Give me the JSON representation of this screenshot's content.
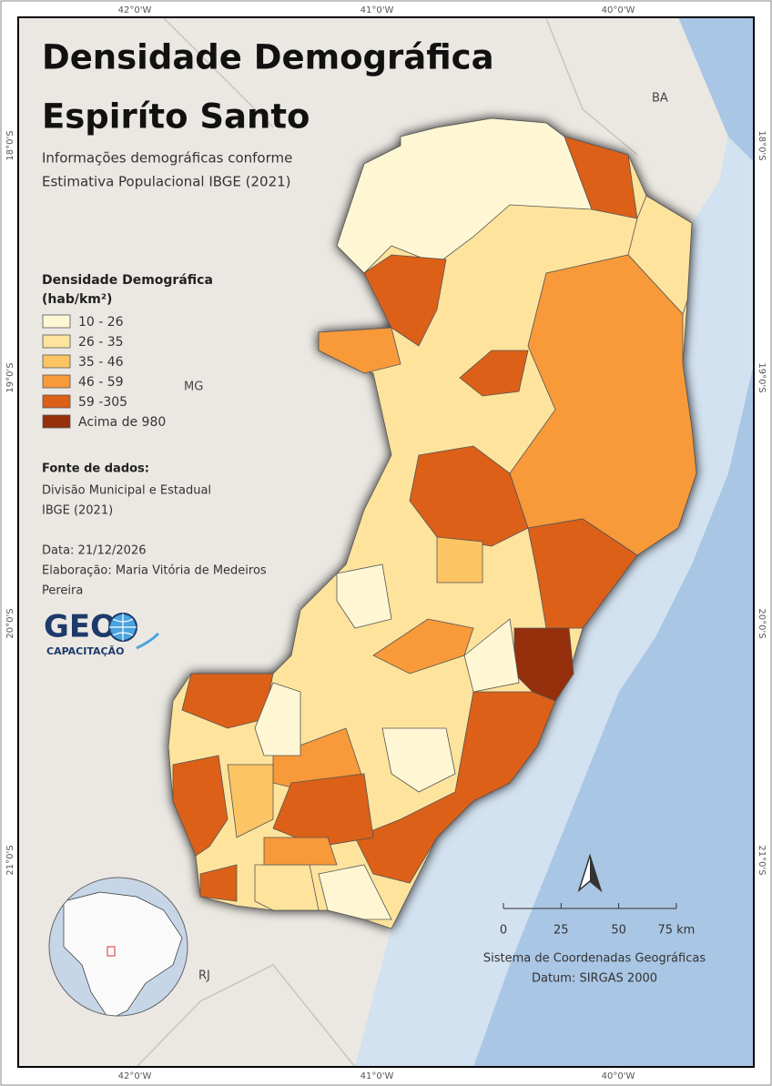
{
  "grid_labels": {
    "top": [
      "42°0'W",
      "41°0'W",
      "40°0'W"
    ],
    "bottom": [
      "42°0'W",
      "41°0'W",
      "40°0'W"
    ],
    "left": [
      "18°0'S",
      "19°0'S",
      "20°0'S",
      "21°0'S"
    ],
    "right": [
      "18°0'S",
      "19°0'S",
      "20°0'S",
      "21°0'S"
    ]
  },
  "header": {
    "title": "Densidade Demográfica",
    "title2": "Espiríto Santo",
    "subtitle": [
      "Informações demográficas conforme",
      "Estimativa Populacional IBGE (2021)"
    ]
  },
  "places": [
    "BA",
    "MG",
    "RJ"
  ],
  "legend": {
    "title": [
      "Densidade Demográfica",
      "(hab/km²)"
    ],
    "items": [
      {
        "label": "10 - 26",
        "color": "#fff7d4"
      },
      {
        "label": "26 - 35",
        "color": "#fde39c"
      },
      {
        "label": "35 - 46",
        "color": "#fcc463"
      },
      {
        "label": "46 - 59",
        "color": "#f8993a"
      },
      {
        "label": "59 -305",
        "color": "#dc6018"
      },
      {
        "label": "Acima de 980",
        "color": "#952f0b"
      }
    ]
  },
  "sources": {
    "heading": "Fonte de dados:",
    "lines": [
      "Divisão Municipal e Estadual",
      "IBGE (2021)"
    ],
    "date": "Data: 21/12/2026",
    "author": [
      "Elaboração: Maria Vitória de Medeiros",
      "Pereira"
    ]
  },
  "logo": {
    "main": "GEO",
    "sub": "CAPACITAÇÃO"
  },
  "scale": [
    "0",
    "25",
    "50",
    "75 km"
  ],
  "crs": [
    "Sistema de Coordenadas Geográficas",
    "Datum: SIRGAS 2000"
  ]
}
